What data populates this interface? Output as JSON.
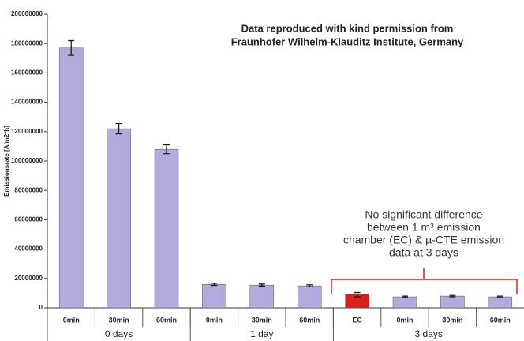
{
  "chart_data": {
    "type": "bar",
    "title": [
      "Data reproduced with kind permission from",
      "Fraunhofer Wilhelm-Klauditz Institute, Germany"
    ],
    "y_label": "Emissionsrate [A/m2*h]",
    "categories": [
      "0min",
      "30min",
      "60min",
      "0min",
      "30min",
      "60min",
      "EC",
      "0min",
      "30min",
      "60min"
    ],
    "groups": [
      {
        "label": "0 days",
        "size": 3
      },
      {
        "label": "1 day",
        "size": 3
      },
      {
        "label": "3 days",
        "size": 4
      }
    ],
    "values": [
      177000000,
      122000000,
      108000000,
      16000000,
      15500000,
      15000000,
      9000000,
      7500000,
      8000000,
      7500000
    ],
    "errors": [
      5000000,
      3500000,
      3000000,
      700000,
      700000,
      700000,
      1500000,
      500000,
      500000,
      500000
    ],
    "colors": [
      "#b4aadd",
      "#b4aadd",
      "#b4aadd",
      "#b4aadd",
      "#b4aadd",
      "#b4aadd",
      "#d8201c",
      "#b4aadd",
      "#b4aadd",
      "#b4aadd"
    ],
    "ylim": [
      0,
      200000000
    ],
    "yticks": [
      0,
      20000000,
      40000000,
      60000000,
      80000000,
      100000000,
      120000000,
      140000000,
      160000000,
      180000000,
      200000000
    ],
    "annotation": [
      "No significant difference",
      "between 1 m³ emission",
      "chamber (EC) & µ-CTE emission",
      "data at 3 days"
    ]
  }
}
